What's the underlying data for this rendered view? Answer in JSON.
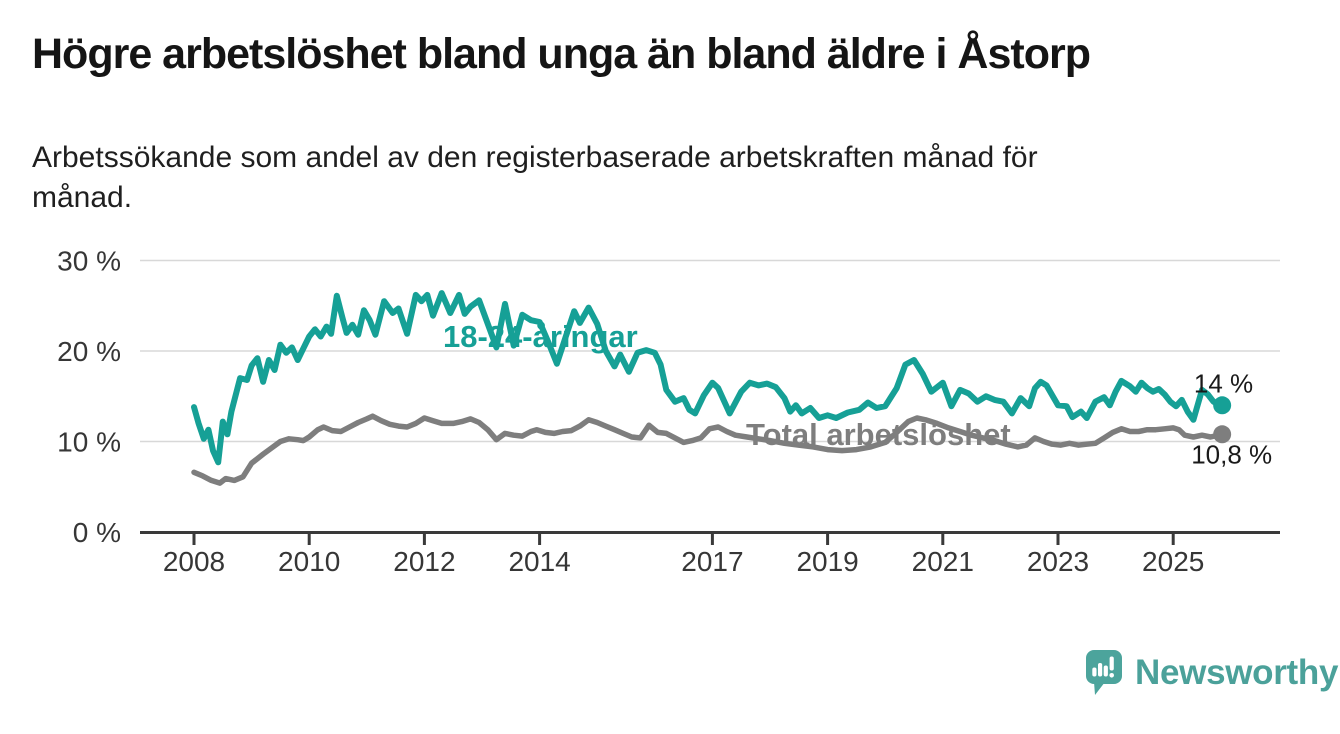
{
  "header": {
    "title": "Högre arbetslöshet bland unga än bland äldre i Åstorp",
    "subtitle_line1": "Arbetssökande som andel av den registerbaserade arbetskraften månad för",
    "subtitle_line2": "månad."
  },
  "footer": {
    "brand": "Newsworthy",
    "logo_icon": "newsworthy-speech-bubble-bar-chart-icon"
  },
  "colors": {
    "youth_line": "#16A096",
    "total_line": "#7E7E7E",
    "axis": "#3A3A3A",
    "grid": "#D8D8D8",
    "tick_label": "#363636",
    "end_label": "#1A1A1A",
    "logo_teal": "#4CA49C"
  },
  "chart_data": {
    "type": "line",
    "unit": "%",
    "grid": "horizontal-only",
    "legend_position": "inline-labels",
    "x_axis": {
      "range": [
        2007.6,
        2026.0
      ],
      "tick_years": [
        2008,
        2010,
        2012,
        2014,
        2017,
        2019,
        2021,
        2023,
        2025
      ],
      "tick_labels": [
        "2008",
        "2010",
        "2012",
        "2014",
        "2017",
        "2019",
        "2021",
        "2023",
        "2025"
      ]
    },
    "y_axis": {
      "range": [
        0,
        30
      ],
      "tick_values": [
        0,
        10,
        20,
        30
      ],
      "tick_labels": [
        "0 %",
        "10 %",
        "20 %",
        "30 %"
      ]
    },
    "series": [
      {
        "name": "18-24-åringar",
        "color_key": "youth_line",
        "end_label": "14 %",
        "end_value": 14.0,
        "points": [
          [
            2008.0,
            13.8
          ],
          [
            2008.08,
            12.0
          ],
          [
            2008.17,
            10.3
          ],
          [
            2008.25,
            11.3
          ],
          [
            2008.33,
            9.0
          ],
          [
            2008.42,
            7.7
          ],
          [
            2008.5,
            12.2
          ],
          [
            2008.58,
            10.8
          ],
          [
            2008.65,
            13.3
          ],
          [
            2008.8,
            17.0
          ],
          [
            2008.92,
            16.8
          ],
          [
            2009.0,
            18.4
          ],
          [
            2009.1,
            19.2
          ],
          [
            2009.2,
            16.6
          ],
          [
            2009.3,
            19.0
          ],
          [
            2009.4,
            17.9
          ],
          [
            2009.5,
            20.7
          ],
          [
            2009.6,
            19.8
          ],
          [
            2009.7,
            20.4
          ],
          [
            2009.8,
            19.0
          ],
          [
            2009.9,
            20.3
          ],
          [
            2010.0,
            21.6
          ],
          [
            2010.1,
            22.4
          ],
          [
            2010.2,
            21.6
          ],
          [
            2010.3,
            22.7
          ],
          [
            2010.38,
            21.9
          ],
          [
            2010.48,
            26.1
          ],
          [
            2010.58,
            23.6
          ],
          [
            2010.65,
            22.0
          ],
          [
            2010.75,
            22.9
          ],
          [
            2010.85,
            21.8
          ],
          [
            2010.95,
            24.5
          ],
          [
            2011.05,
            23.4
          ],
          [
            2011.15,
            21.8
          ],
          [
            2011.3,
            25.5
          ],
          [
            2011.45,
            24.2
          ],
          [
            2011.55,
            24.7
          ],
          [
            2011.7,
            21.9
          ],
          [
            2011.85,
            26.2
          ],
          [
            2011.95,
            25.5
          ],
          [
            2012.05,
            26.2
          ],
          [
            2012.15,
            23.9
          ],
          [
            2012.3,
            26.4
          ],
          [
            2012.45,
            24.2
          ],
          [
            2012.6,
            26.2
          ],
          [
            2012.7,
            24.1
          ],
          [
            2012.8,
            24.9
          ],
          [
            2012.95,
            25.6
          ],
          [
            2013.1,
            23.0
          ],
          [
            2013.25,
            20.4
          ],
          [
            2013.4,
            25.2
          ],
          [
            2013.55,
            20.6
          ],
          [
            2013.7,
            24.0
          ],
          [
            2013.85,
            23.4
          ],
          [
            2014.0,
            23.2
          ],
          [
            2014.15,
            21.0
          ],
          [
            2014.3,
            18.6
          ],
          [
            2014.45,
            21.5
          ],
          [
            2014.6,
            24.4
          ],
          [
            2014.7,
            23.1
          ],
          [
            2014.85,
            24.8
          ],
          [
            2015.0,
            23.0
          ],
          [
            2015.15,
            20.0
          ],
          [
            2015.3,
            18.3
          ],
          [
            2015.4,
            19.6
          ],
          [
            2015.55,
            17.7
          ],
          [
            2015.7,
            19.8
          ],
          [
            2015.85,
            20.1
          ],
          [
            2016.0,
            19.8
          ],
          [
            2016.1,
            18.5
          ],
          [
            2016.2,
            15.7
          ],
          [
            2016.35,
            14.4
          ],
          [
            2016.5,
            14.8
          ],
          [
            2016.6,
            13.5
          ],
          [
            2016.7,
            13.1
          ],
          [
            2016.85,
            15.1
          ],
          [
            2017.0,
            16.5
          ],
          [
            2017.1,
            15.9
          ],
          [
            2017.3,
            13.1
          ],
          [
            2017.5,
            15.5
          ],
          [
            2017.65,
            16.5
          ],
          [
            2017.8,
            16.2
          ],
          [
            2017.95,
            16.4
          ],
          [
            2018.1,
            16.0
          ],
          [
            2018.25,
            14.8
          ],
          [
            2018.35,
            13.3
          ],
          [
            2018.45,
            14.0
          ],
          [
            2018.55,
            13.1
          ],
          [
            2018.7,
            13.7
          ],
          [
            2018.85,
            12.6
          ],
          [
            2019.0,
            12.9
          ],
          [
            2019.15,
            12.6
          ],
          [
            2019.35,
            13.2
          ],
          [
            2019.55,
            13.5
          ],
          [
            2019.7,
            14.3
          ],
          [
            2019.85,
            13.7
          ],
          [
            2020.0,
            13.9
          ],
          [
            2020.2,
            15.9
          ],
          [
            2020.35,
            18.5
          ],
          [
            2020.5,
            19.0
          ],
          [
            2020.65,
            17.5
          ],
          [
            2020.8,
            15.5
          ],
          [
            2021.0,
            16.5
          ],
          [
            2021.15,
            13.9
          ],
          [
            2021.3,
            15.7
          ],
          [
            2021.45,
            15.3
          ],
          [
            2021.6,
            14.4
          ],
          [
            2021.75,
            15.0
          ],
          [
            2021.9,
            14.6
          ],
          [
            2022.05,
            14.4
          ],
          [
            2022.2,
            13.1
          ],
          [
            2022.35,
            14.8
          ],
          [
            2022.5,
            13.9
          ],
          [
            2022.6,
            15.9
          ],
          [
            2022.7,
            16.6
          ],
          [
            2022.8,
            16.2
          ],
          [
            2023.0,
            14.0
          ],
          [
            2023.15,
            13.9
          ],
          [
            2023.25,
            12.7
          ],
          [
            2023.4,
            13.3
          ],
          [
            2023.5,
            12.6
          ],
          [
            2023.65,
            14.4
          ],
          [
            2023.8,
            14.9
          ],
          [
            2023.9,
            14.0
          ],
          [
            2024.0,
            15.5
          ],
          [
            2024.1,
            16.7
          ],
          [
            2024.25,
            16.1
          ],
          [
            2024.35,
            15.5
          ],
          [
            2024.45,
            16.5
          ],
          [
            2024.55,
            15.9
          ],
          [
            2024.65,
            15.5
          ],
          [
            2024.75,
            15.8
          ],
          [
            2024.85,
            15.2
          ],
          [
            2024.95,
            14.4
          ],
          [
            2025.05,
            13.9
          ],
          [
            2025.15,
            14.6
          ],
          [
            2025.25,
            13.3
          ],
          [
            2025.35,
            12.4
          ],
          [
            2025.5,
            15.7
          ],
          [
            2025.6,
            15.2
          ],
          [
            2025.7,
            14.4
          ],
          [
            2025.85,
            14.0
          ]
        ]
      },
      {
        "name": "Total arbetslöshet",
        "color_key": "total_line",
        "end_label": "10,8 %",
        "end_value": 10.8,
        "points": [
          [
            2008.0,
            6.6
          ],
          [
            2008.15,
            6.2
          ],
          [
            2008.3,
            5.7
          ],
          [
            2008.45,
            5.4
          ],
          [
            2008.55,
            5.9
          ],
          [
            2008.7,
            5.7
          ],
          [
            2008.85,
            6.1
          ],
          [
            2009.0,
            7.6
          ],
          [
            2009.2,
            8.6
          ],
          [
            2009.35,
            9.3
          ],
          [
            2009.5,
            10.0
          ],
          [
            2009.65,
            10.3
          ],
          [
            2009.8,
            10.2
          ],
          [
            2009.9,
            10.1
          ],
          [
            2010.0,
            10.5
          ],
          [
            2010.15,
            11.3
          ],
          [
            2010.25,
            11.6
          ],
          [
            2010.4,
            11.2
          ],
          [
            2010.55,
            11.1
          ],
          [
            2010.7,
            11.6
          ],
          [
            2010.85,
            12.1
          ],
          [
            2011.0,
            12.5
          ],
          [
            2011.1,
            12.8
          ],
          [
            2011.25,
            12.3
          ],
          [
            2011.4,
            11.9
          ],
          [
            2011.55,
            11.7
          ],
          [
            2011.7,
            11.6
          ],
          [
            2011.85,
            12.0
          ],
          [
            2012.0,
            12.6
          ],
          [
            2012.15,
            12.3
          ],
          [
            2012.3,
            12.0
          ],
          [
            2012.5,
            12.0
          ],
          [
            2012.65,
            12.2
          ],
          [
            2012.8,
            12.5
          ],
          [
            2012.95,
            12.1
          ],
          [
            2013.1,
            11.3
          ],
          [
            2013.25,
            10.2
          ],
          [
            2013.4,
            10.9
          ],
          [
            2013.55,
            10.7
          ],
          [
            2013.7,
            10.6
          ],
          [
            2013.85,
            11.1
          ],
          [
            2013.95,
            11.3
          ],
          [
            2014.1,
            11.0
          ],
          [
            2014.25,
            10.9
          ],
          [
            2014.4,
            11.1
          ],
          [
            2014.55,
            11.2
          ],
          [
            2014.7,
            11.7
          ],
          [
            2014.85,
            12.4
          ],
          [
            2015.0,
            12.1
          ],
          [
            2015.15,
            11.7
          ],
          [
            2015.3,
            11.3
          ],
          [
            2015.45,
            10.9
          ],
          [
            2015.6,
            10.5
          ],
          [
            2015.75,
            10.4
          ],
          [
            2015.9,
            11.8
          ],
          [
            2016.05,
            11.0
          ],
          [
            2016.2,
            10.9
          ],
          [
            2016.35,
            10.4
          ],
          [
            2016.5,
            9.9
          ],
          [
            2016.65,
            10.1
          ],
          [
            2016.8,
            10.4
          ],
          [
            2016.95,
            11.4
          ],
          [
            2017.1,
            11.6
          ],
          [
            2017.25,
            11.1
          ],
          [
            2017.4,
            10.7
          ],
          [
            2017.6,
            10.5
          ],
          [
            2017.8,
            10.3
          ],
          [
            2018.0,
            10.1
          ],
          [
            2018.25,
            9.8
          ],
          [
            2018.5,
            9.6
          ],
          [
            2018.75,
            9.4
          ],
          [
            2019.0,
            9.1
          ],
          [
            2019.25,
            9.0
          ],
          [
            2019.5,
            9.1
          ],
          [
            2019.75,
            9.4
          ],
          [
            2020.0,
            9.9
          ],
          [
            2020.2,
            11.0
          ],
          [
            2020.4,
            12.2
          ],
          [
            2020.55,
            12.6
          ],
          [
            2020.7,
            12.4
          ],
          [
            2020.9,
            12.0
          ],
          [
            2021.1,
            11.5
          ],
          [
            2021.3,
            11.1
          ],
          [
            2021.5,
            10.7
          ],
          [
            2021.7,
            10.4
          ],
          [
            2021.9,
            10.1
          ],
          [
            2022.1,
            9.7
          ],
          [
            2022.3,
            9.4
          ],
          [
            2022.45,
            9.6
          ],
          [
            2022.6,
            10.4
          ],
          [
            2022.75,
            10.0
          ],
          [
            2022.9,
            9.7
          ],
          [
            2023.05,
            9.6
          ],
          [
            2023.2,
            9.8
          ],
          [
            2023.35,
            9.6
          ],
          [
            2023.5,
            9.7
          ],
          [
            2023.65,
            9.8
          ],
          [
            2023.8,
            10.4
          ],
          [
            2023.95,
            11.0
          ],
          [
            2024.1,
            11.4
          ],
          [
            2024.25,
            11.1
          ],
          [
            2024.4,
            11.1
          ],
          [
            2024.55,
            11.3
          ],
          [
            2024.7,
            11.3
          ],
          [
            2024.85,
            11.4
          ],
          [
            2025.0,
            11.5
          ],
          [
            2025.1,
            11.3
          ],
          [
            2025.2,
            10.7
          ],
          [
            2025.35,
            10.5
          ],
          [
            2025.5,
            10.7
          ],
          [
            2025.65,
            10.5
          ],
          [
            2025.85,
            10.8
          ]
        ]
      }
    ]
  }
}
